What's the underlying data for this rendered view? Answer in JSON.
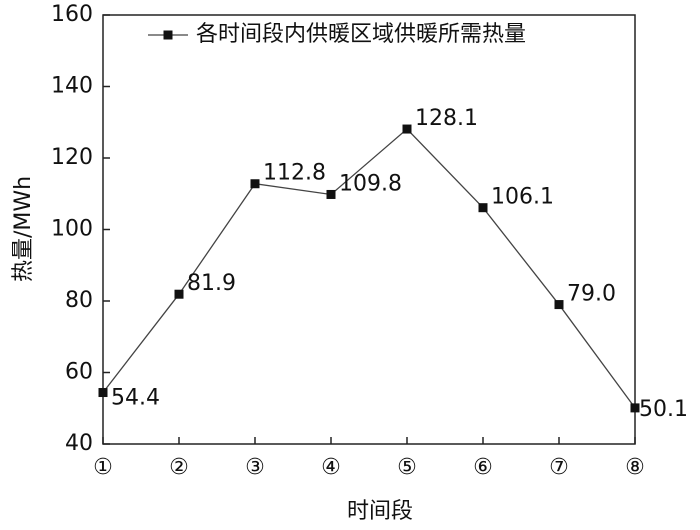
{
  "chart_data": {
    "type": "line",
    "categories": [
      "①",
      "②",
      "③",
      "④",
      "⑤",
      "⑥",
      "⑦",
      "⑧"
    ],
    "series": [
      {
        "name": "各时间段内供暖区域供暖所需热量",
        "color": "#444444",
        "values": [
          54.4,
          81.9,
          112.8,
          109.8,
          128.1,
          106.1,
          79.0,
          50.1
        ],
        "value_labels": [
          "54.4",
          "81.9",
          "112.8",
          "109.8",
          "128.1",
          "106.1",
          "79.0",
          "50.1"
        ]
      }
    ],
    "xlabel": "时间段",
    "ylabel": "热量/MWh",
    "ylim": [
      40,
      160
    ],
    "yticks": [
      40,
      60,
      80,
      100,
      120,
      140,
      160
    ],
    "legend": "upper right"
  }
}
